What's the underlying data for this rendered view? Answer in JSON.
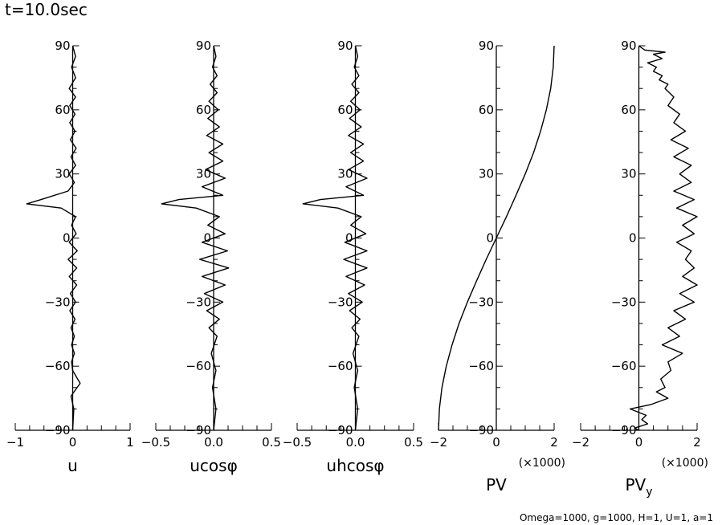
{
  "header": {
    "time_label": "t=10.0sec"
  },
  "footer": {
    "params": "Omega=1000, g=1000, H=1, U=1, a=1"
  },
  "chart_data": [
    {
      "type": "line",
      "xlabel": "u",
      "ylabel": "",
      "xlim": [
        -1,
        1
      ],
      "ylim": [
        -90,
        90
      ],
      "x_ticks": [
        "−1",
        "0",
        "1"
      ],
      "y_ticks": [
        "−90",
        "−60",
        "−30",
        "0",
        "30",
        "60",
        "90"
      ],
      "multiplier": "",
      "series": [
        {
          "x": [
            0.0,
            0.05,
            -0.02,
            0.05,
            -0.06,
            0.05,
            -0.05,
            0.04,
            -0.05,
            0.04,
            -0.04,
            0.06,
            -0.03,
            0.05,
            -0.06,
            0.03,
            -0.08,
            -0.55,
            -0.8,
            -0.2,
            0.05,
            -0.02,
            0.06,
            -0.06,
            0.08,
            -0.08,
            0.07,
            -0.06,
            0.07,
            -0.04,
            0.05,
            -0.05,
            0.04,
            -0.03,
            0.03,
            -0.02,
            0.03,
            -0.02,
            0.0,
            0.13,
            -0.03,
            0.02,
            0.0
          ],
          "y": [
            90,
            85,
            80,
            75,
            70,
            66,
            62,
            58,
            54,
            50,
            46,
            42,
            38,
            34,
            30,
            26,
            22,
            18,
            16,
            14,
            10,
            6,
            2,
            -2,
            -6,
            -10,
            -14,
            -18,
            -22,
            -26,
            -30,
            -34,
            -38,
            -42,
            -46,
            -50,
            -54,
            -58,
            -62,
            -68,
            -74,
            -80,
            -90
          ]
        }
      ]
    },
    {
      "type": "line",
      "xlabel": "ucosφ",
      "ylabel": "",
      "xlim": [
        -0.5,
        0.5
      ],
      "ylim": [
        -90,
        90
      ],
      "x_ticks": [
        "−0.5",
        "0.0",
        "0.5"
      ],
      "y_ticks": [
        "−90",
        "−60",
        "−30",
        "0",
        "30",
        "60",
        "90"
      ],
      "multiplier": "",
      "series": [
        {
          "x": [
            0.0,
            0.02,
            -0.01,
            0.03,
            -0.03,
            0.03,
            -0.04,
            0.04,
            -0.05,
            0.05,
            -0.06,
            0.08,
            -0.04,
            0.08,
            -0.07,
            0.1,
            -0.1,
            0.08,
            -0.3,
            -0.45,
            -0.15,
            0.05,
            -0.05,
            0.1,
            -0.1,
            0.12,
            -0.12,
            0.13,
            -0.1,
            0.1,
            -0.08,
            0.08,
            -0.06,
            0.05,
            -0.04,
            0.03,
            -0.02,
            0.02,
            -0.01,
            0.02,
            0.0
          ],
          "y": [
            90,
            85,
            80,
            76,
            72,
            68,
            64,
            60,
            56,
            52,
            48,
            44,
            40,
            36,
            32,
            28,
            24,
            20,
            18,
            16,
            14,
            10,
            6,
            2,
            -2,
            -6,
            -10,
            -14,
            -18,
            -22,
            -26,
            -30,
            -34,
            -38,
            -42,
            -46,
            -54,
            -62,
            -70,
            -80,
            -90
          ]
        }
      ]
    },
    {
      "type": "line",
      "xlabel": "uhcosφ",
      "ylabel": "",
      "xlim": [
        -0.5,
        0.5
      ],
      "ylim": [
        -90,
        90
      ],
      "x_ticks": [
        "−0.5",
        "0.0",
        "0.5"
      ],
      "y_ticks": [
        "−90",
        "−60",
        "−30",
        "0",
        "30",
        "60",
        "90"
      ],
      "multiplier": "",
      "series": [
        {
          "x": [
            0.0,
            0.02,
            -0.01,
            0.03,
            -0.03,
            0.03,
            -0.04,
            0.04,
            -0.05,
            0.05,
            -0.06,
            0.07,
            -0.04,
            0.07,
            -0.06,
            0.1,
            -0.08,
            0.07,
            -0.3,
            -0.45,
            -0.15,
            0.05,
            -0.04,
            0.09,
            -0.09,
            0.1,
            -0.1,
            0.1,
            -0.08,
            0.08,
            -0.06,
            0.06,
            -0.05,
            0.04,
            -0.03,
            0.03,
            -0.02,
            0.02,
            -0.01,
            0.02,
            0.0
          ],
          "y": [
            90,
            85,
            80,
            76,
            72,
            68,
            64,
            60,
            56,
            52,
            48,
            44,
            40,
            36,
            32,
            28,
            24,
            20,
            18,
            16,
            14,
            10,
            6,
            2,
            -2,
            -6,
            -10,
            -14,
            -18,
            -22,
            -26,
            -30,
            -34,
            -38,
            -42,
            -46,
            -54,
            -62,
            -70,
            -80,
            -90
          ]
        }
      ]
    },
    {
      "type": "line",
      "xlabel": "PV",
      "ylabel": "",
      "xlim": [
        -2,
        2
      ],
      "ylim": [
        -90,
        90
      ],
      "x_ticks": [
        "−2",
        "0",
        "2"
      ],
      "y_ticks": [
        "−90",
        "−60",
        "−30",
        "0",
        "30",
        "60",
        "90"
      ],
      "multiplier": "(×1000)",
      "series": [
        {
          "x": [
            -2.0,
            -1.97,
            -1.88,
            -1.73,
            -1.53,
            -1.29,
            -1.0,
            -0.68,
            -0.35,
            0.0,
            0.35,
            0.68,
            1.0,
            1.29,
            1.53,
            1.73,
            1.88,
            1.97,
            2.0
          ],
          "y": [
            -90,
            -80,
            -70,
            -60,
            -50,
            -40,
            -30,
            -20,
            -10,
            0,
            10,
            20,
            30,
            40,
            50,
            60,
            70,
            80,
            90
          ]
        }
      ]
    },
    {
      "type": "line",
      "xlabel": "PV",
      "xlabel_sub": "y",
      "ylabel": "",
      "xlim": [
        -2,
        2
      ],
      "ylim": [
        -90,
        90
      ],
      "x_ticks": [
        "−2",
        "0",
        "2"
      ],
      "y_ticks": [
        "−90",
        "−60",
        "−30",
        "0",
        "30",
        "60",
        "90"
      ],
      "multiplier": "(×1000)",
      "series": [
        {
          "x": [
            0.0,
            -0.15,
            0.3,
            0.1,
            0.25,
            -0.3,
            0.4,
            1.0,
            0.6,
            0.9,
            0.75,
            1.1,
            1.0,
            1.5,
            0.8,
            1.4,
            1.0,
            1.6,
            1.2,
            1.9,
            1.4,
            2.0,
            1.5,
            1.9,
            1.6,
            1.8,
            1.3,
            1.9,
            1.5,
            2.0,
            1.3,
            1.9,
            1.2,
            1.8,
            1.4,
            1.8,
            1.2,
            1.7,
            1.1,
            1.6,
            1.2,
            1.4,
            1.0,
            1.2,
            0.9,
            1.0,
            0.7,
            0.8,
            0.5,
            0.6,
            0.3,
            0.8,
            0.5,
            0.9,
            0.2,
            0.1,
            0.0
          ],
          "y": [
            -90,
            -89,
            -87,
            -85,
            -83,
            -80,
            -78,
            -75,
            -72,
            -70,
            -66,
            -62,
            -58,
            -54,
            -50,
            -46,
            -42,
            -38,
            -34,
            -30,
            -26,
            -22,
            -18,
            -14,
            -10,
            -6,
            -2,
            2,
            6,
            10,
            14,
            18,
            22,
            26,
            30,
            34,
            38,
            42,
            46,
            50,
            54,
            58,
            62,
            66,
            70,
            72,
            74,
            76,
            78,
            80,
            82,
            84,
            86,
            87,
            88,
            89,
            90
          ]
        }
      ]
    }
  ]
}
